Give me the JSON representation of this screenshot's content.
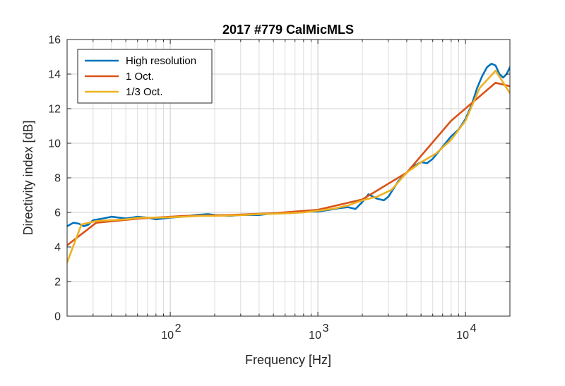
{
  "chart_data": {
    "type": "line",
    "title": "2017 #779 CalMicMLS",
    "xlabel": "Frequency [Hz]",
    "ylabel": "Directivity index [dB]",
    "xscale": "log",
    "xlim": [
      20,
      20000
    ],
    "ylim": [
      0,
      16
    ],
    "yticks": [
      0,
      2,
      4,
      6,
      8,
      10,
      12,
      14,
      16
    ],
    "xticks": [
      {
        "value": 100,
        "base": "10",
        "exp": "2"
      },
      {
        "value": 1000,
        "base": "10",
        "exp": "3"
      },
      {
        "value": 10000,
        "base": "10",
        "exp": "4"
      }
    ],
    "grid": true,
    "legend_position": "top-left",
    "series": [
      {
        "name": "High resolution",
        "color": "#0072BD",
        "points": [
          [
            20,
            5.2
          ],
          [
            22,
            5.4
          ],
          [
            24,
            5.35
          ],
          [
            26,
            5.2
          ],
          [
            28,
            5.3
          ],
          [
            30,
            5.55
          ],
          [
            35,
            5.65
          ],
          [
            40,
            5.75
          ],
          [
            45,
            5.7
          ],
          [
            50,
            5.65
          ],
          [
            60,
            5.75
          ],
          [
            70,
            5.7
          ],
          [
            80,
            5.6
          ],
          [
            90,
            5.65
          ],
          [
            100,
            5.7
          ],
          [
            120,
            5.75
          ],
          [
            150,
            5.85
          ],
          [
            180,
            5.9
          ],
          [
            200,
            5.85
          ],
          [
            250,
            5.8
          ],
          [
            300,
            5.85
          ],
          [
            400,
            5.85
          ],
          [
            500,
            5.95
          ],
          [
            600,
            5.95
          ],
          [
            700,
            6.0
          ],
          [
            800,
            6.05
          ],
          [
            1000,
            6.05
          ],
          [
            1200,
            6.15
          ],
          [
            1400,
            6.25
          ],
          [
            1600,
            6.3
          ],
          [
            1800,
            6.2
          ],
          [
            2000,
            6.6
          ],
          [
            2200,
            7.05
          ],
          [
            2500,
            6.8
          ],
          [
            2800,
            6.7
          ],
          [
            3000,
            6.9
          ],
          [
            3500,
            7.8
          ],
          [
            4000,
            8.3
          ],
          [
            4500,
            8.7
          ],
          [
            5000,
            8.9
          ],
          [
            5500,
            8.85
          ],
          [
            6000,
            9.1
          ],
          [
            7000,
            9.8
          ],
          [
            8000,
            10.4
          ],
          [
            9000,
            10.8
          ],
          [
            10000,
            11.4
          ],
          [
            11000,
            12.2
          ],
          [
            12000,
            13.2
          ],
          [
            13000,
            13.9
          ],
          [
            14000,
            14.4
          ],
          [
            15000,
            14.6
          ],
          [
            16000,
            14.5
          ],
          [
            17000,
            14.0
          ],
          [
            18000,
            13.8
          ],
          [
            19000,
            14.0
          ],
          [
            20000,
            14.4
          ]
        ]
      },
      {
        "name": "1 Oct.",
        "color": "#D95319",
        "points": [
          [
            20,
            4.1
          ],
          [
            31.5,
            5.4
          ],
          [
            63,
            5.65
          ],
          [
            125,
            5.8
          ],
          [
            250,
            5.85
          ],
          [
            500,
            5.95
          ],
          [
            1000,
            6.15
          ],
          [
            2000,
            6.75
          ],
          [
            4000,
            8.3
          ],
          [
            8000,
            11.3
          ],
          [
            16000,
            13.5
          ],
          [
            20000,
            13.3
          ]
        ]
      },
      {
        "name": "1/3 Oct.",
        "color": "#EDB120",
        "points": [
          [
            20,
            3.1
          ],
          [
            25,
            5.3
          ],
          [
            31.5,
            5.5
          ],
          [
            40,
            5.55
          ],
          [
            50,
            5.6
          ],
          [
            63,
            5.7
          ],
          [
            80,
            5.7
          ],
          [
            100,
            5.72
          ],
          [
            125,
            5.75
          ],
          [
            160,
            5.8
          ],
          [
            200,
            5.8
          ],
          [
            250,
            5.82
          ],
          [
            315,
            5.85
          ],
          [
            400,
            5.9
          ],
          [
            500,
            5.92
          ],
          [
            630,
            5.95
          ],
          [
            800,
            6.0
          ],
          [
            1000,
            6.1
          ],
          [
            1250,
            6.2
          ],
          [
            1600,
            6.4
          ],
          [
            2000,
            6.7
          ],
          [
            2500,
            6.9
          ],
          [
            3150,
            7.3
          ],
          [
            4000,
            8.3
          ],
          [
            5000,
            8.9
          ],
          [
            6300,
            9.4
          ],
          [
            8000,
            10.2
          ],
          [
            10000,
            11.3
          ],
          [
            12500,
            13.2
          ],
          [
            16000,
            14.2
          ],
          [
            20000,
            12.9
          ]
        ]
      }
    ]
  }
}
